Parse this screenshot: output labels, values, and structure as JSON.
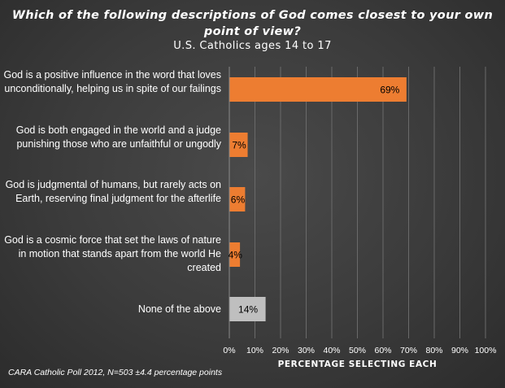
{
  "chart_data": {
    "type": "bar",
    "orientation": "horizontal",
    "title": "Which of the following  descriptions of God comes closest to your own point of view?",
    "subtitle": "U.S. Catholics ages 14 to 17",
    "xlabel": "PERCENTAGE  SELECTING  EACH",
    "xlim": [
      0,
      100
    ],
    "ticks": [
      "0%",
      "10%",
      "20%",
      "30%",
      "40%",
      "50%",
      "60%",
      "70%",
      "80%",
      "90%",
      "100%"
    ],
    "categories": [
      "God is a positive influence in the word that loves unconditionally, helping us in spite of our failings",
      "God is both engaged in the world and a judge punishing those who are unfaithful or ungodly",
      "God is judgmental of humans, but rarely acts on Earth, reserving final judgment for the afterlife",
      "God is a cosmic force that set the laws of nature in motion that stands apart from the world He created",
      "None of the above"
    ],
    "values": [
      69,
      7,
      6,
      4,
      14
    ],
    "data_labels": [
      "69%",
      "7%",
      "6%",
      "4%",
      "14%"
    ],
    "colors": [
      "#ED7D31",
      "#ED7D31",
      "#ED7D31",
      "#ED7D31",
      "#BFBFBF"
    ],
    "grid": true
  },
  "footnote": "CARA Catholic Poll 2012, N=503 ±4.4 percentage points"
}
